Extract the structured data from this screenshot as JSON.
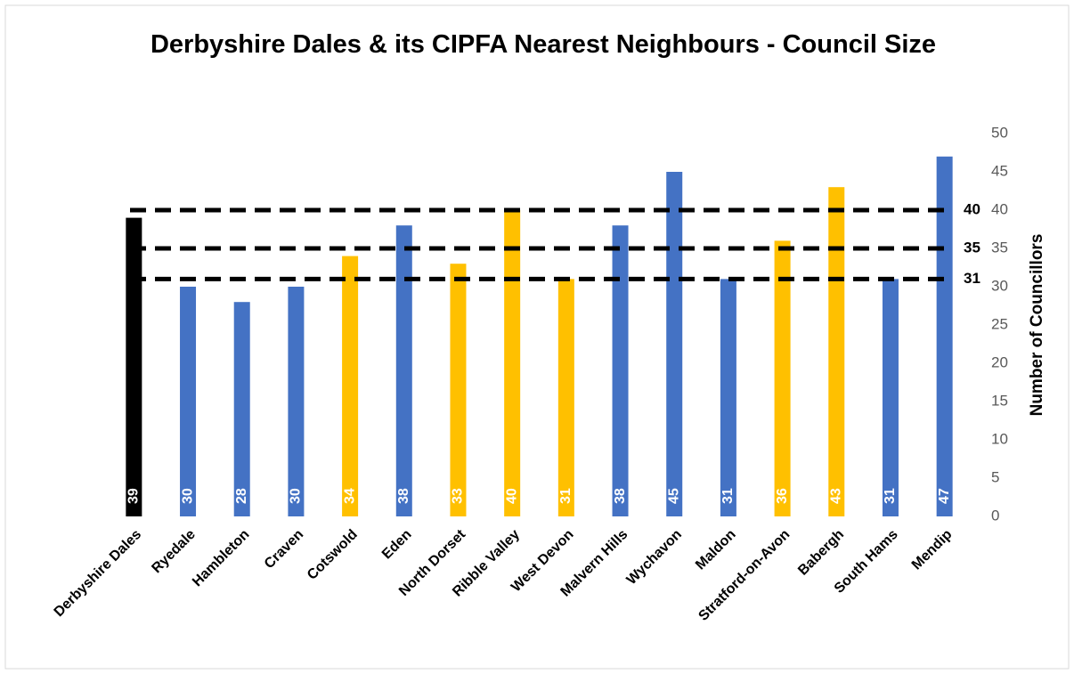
{
  "chart_data": {
    "type": "bar",
    "title": "Derbyshire Dales & its CIPFA Nearest Neighbours - Council Size",
    "y_axis_label": "Number of Councillors",
    "categories": [
      "Derbyshire Dales",
      "Ryedale",
      "Hambleton",
      "Craven",
      "Cotswold",
      "Eden",
      "North Dorset",
      "Ribble Valley",
      "West Devon",
      "Malvern Hills",
      "Wychavon",
      "Maldon",
      "Stratford-on-Avon",
      "Babergh",
      "South Hams",
      "Mendip"
    ],
    "values": [
      39,
      30,
      28,
      30,
      34,
      38,
      33,
      40,
      31,
      38,
      45,
      31,
      36,
      43,
      31,
      47
    ],
    "colors": [
      "#000000",
      "#4472c4",
      "#4472c4",
      "#4472c4",
      "#ffc000",
      "#4472c4",
      "#ffc000",
      "#ffc000",
      "#ffc000",
      "#4472c4",
      "#4472c4",
      "#4472c4",
      "#ffc000",
      "#ffc000",
      "#4472c4",
      "#4472c4"
    ],
    "reference_lines": [
      40,
      35,
      31
    ],
    "ylim": [
      0,
      50
    ],
    "yticks": [
      0,
      5,
      10,
      15,
      20,
      25,
      30,
      35,
      40,
      45,
      50
    ],
    "y_axis_side": "right",
    "grid": false
  }
}
